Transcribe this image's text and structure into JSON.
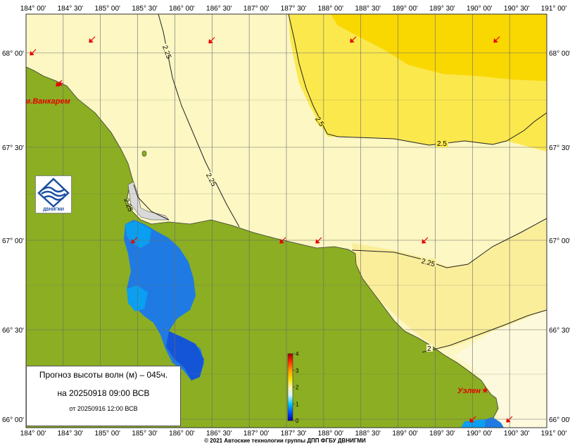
{
  "map": {
    "lon_labels_top": [
      "184° 00'",
      "184° 30'",
      "185° 00'",
      "185° 30'",
      "186° 00'",
      "186° 30'",
      "187° 00'",
      "187° 30'",
      "188° 00'",
      "188° 30'",
      "189° 00'",
      "189° 30'",
      "190° 00'",
      "190° 30'",
      "191° 00'"
    ],
    "lon_labels_bottom": [
      "184° 00'",
      "184° 30'",
      "185° 00'",
      "185° 30'",
      "186° 00'",
      "186° 30'",
      "187° 00'",
      "187° 30'",
      "188° 00'",
      "188° 30'",
      "189° 00'",
      "189° 30'",
      "190° 00'",
      "190° 30'",
      "191° 00'"
    ],
    "lat_labels": [
      "68° 00'",
      "67° 30'",
      "67° 00'",
      "66° 30'",
      "66° 00'"
    ],
    "isolines": [
      "2.25",
      "2.25",
      "2.25",
      "2.5",
      "2.5",
      "2.25",
      "2"
    ],
    "cities": [
      {
        "name": "м.Ванкарем"
      },
      {
        "name": "Уэлен"
      }
    ],
    "colorbar": {
      "ticks": [
        "0",
        "1",
        "2",
        "3",
        "4"
      ]
    },
    "colors": {
      "land": "#8bae22",
      "sea_pale": "#fcf7c3",
      "sea_mid": "#fbee9a",
      "sea_yellow": "#fbe84c",
      "sea_gold": "#f9d700",
      "lagoon_blue": "#1f7be3",
      "lagoon_light": "#0a9ff0",
      "lagoon_dark": "#1455d8",
      "arrow": "#e60000"
    }
  },
  "logo": {
    "text": "ДВНИГМИ"
  },
  "info": {
    "title": "Прогноз высоты волн (м) – 045ч.",
    "valid_time": "на 20250918 09:00 ВСВ",
    "issued": "от 20250916 12:00 ВСВ"
  },
  "footer": {
    "copyright": "© 2021 Автоские технологии группы ДПП ФГБУ ДВНИГМИ"
  }
}
